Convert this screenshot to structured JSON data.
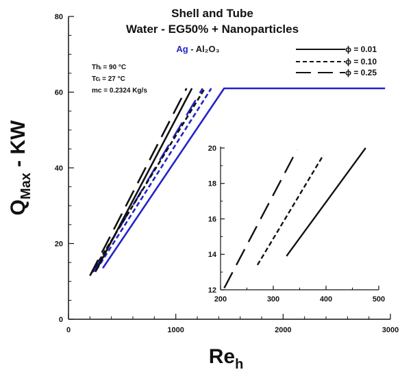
{
  "chart_data": {
    "type": "line",
    "title": "Shell and Tube",
    "subtitle": "Water - EG50% + Nanoparticles",
    "legend_title": {
      "prefix": "Ag",
      "separator": " - ",
      "suffix": "Al₂O₃",
      "prefix_color": "#2222cc",
      "suffix_color": "#1a1a1a"
    },
    "conditions": [
      "Thᵢ = 90 °C",
      "Tcᵢ = 27 °C",
      "mᴄ  = 0.2324 Kg/s"
    ],
    "xlabel": "Reₕ",
    "ylabel": "Qₘₐₓ - KW",
    "xlim": [
      0,
      3000
    ],
    "ylim": [
      0,
      80
    ],
    "xticks": [
      0,
      1000,
      2000,
      3000
    ],
    "yticks": [
      0,
      20,
      40,
      60,
      80
    ],
    "legend": {
      "position": "top-right",
      "entries": [
        {
          "label": "ϕ = 0.01",
          "dash": "solid"
        },
        {
          "label": "ϕ = 0.10",
          "dash": "short"
        },
        {
          "label": "ϕ = 0.25",
          "dash": "long"
        }
      ]
    },
    "colors": {
      "Ag": "#2222cc",
      "Al2O3": "#111111"
    },
    "series": [
      {
        "group": "Ag",
        "dash": "solid",
        "color": "#2222cc",
        "x": [
          320,
          1450,
          2950
        ],
        "y": [
          13.5,
          61,
          61
        ]
      },
      {
        "group": "Ag",
        "dash": "short",
        "color": "#2222cc",
        "x": [
          260,
          1330
        ],
        "y": [
          13,
          61
        ]
      },
      {
        "group": "Ag",
        "dash": "long",
        "color": "#2222cc",
        "x": [
          230,
          1250
        ],
        "y": [
          12.5,
          61
        ]
      },
      {
        "group": "Al2O3",
        "dash": "solid",
        "color": "#111111",
        "x": [
          250,
          1150
        ],
        "y": [
          12.5,
          61
        ]
      },
      {
        "group": "Al2O3",
        "dash": "short",
        "color": "#111111",
        "x": [
          210,
          1270
        ],
        "y": [
          12,
          61
        ]
      },
      {
        "group": "Al2O3",
        "dash": "long",
        "color": "#111111",
        "x": [
          200,
          1100
        ],
        "y": [
          11.5,
          61
        ]
      }
    ],
    "inset": {
      "xlim": [
        200,
        500
      ],
      "ylim": [
        12,
        20
      ],
      "xticks": [
        200,
        300,
        400,
        500
      ],
      "yticks": [
        12,
        14,
        16,
        18,
        20
      ],
      "series": [
        {
          "dash": "solid",
          "color": "#111111",
          "x": [
            325,
            475
          ],
          "y": [
            13.9,
            20
          ]
        },
        {
          "dash": "short",
          "color": "#111111",
          "x": [
            270,
            395
          ],
          "y": [
            13.4,
            19.6
          ]
        },
        {
          "dash": "long",
          "color": "#111111",
          "x": [
            207,
            345
          ],
          "y": [
            12.1,
            19.9
          ]
        }
      ]
    }
  }
}
